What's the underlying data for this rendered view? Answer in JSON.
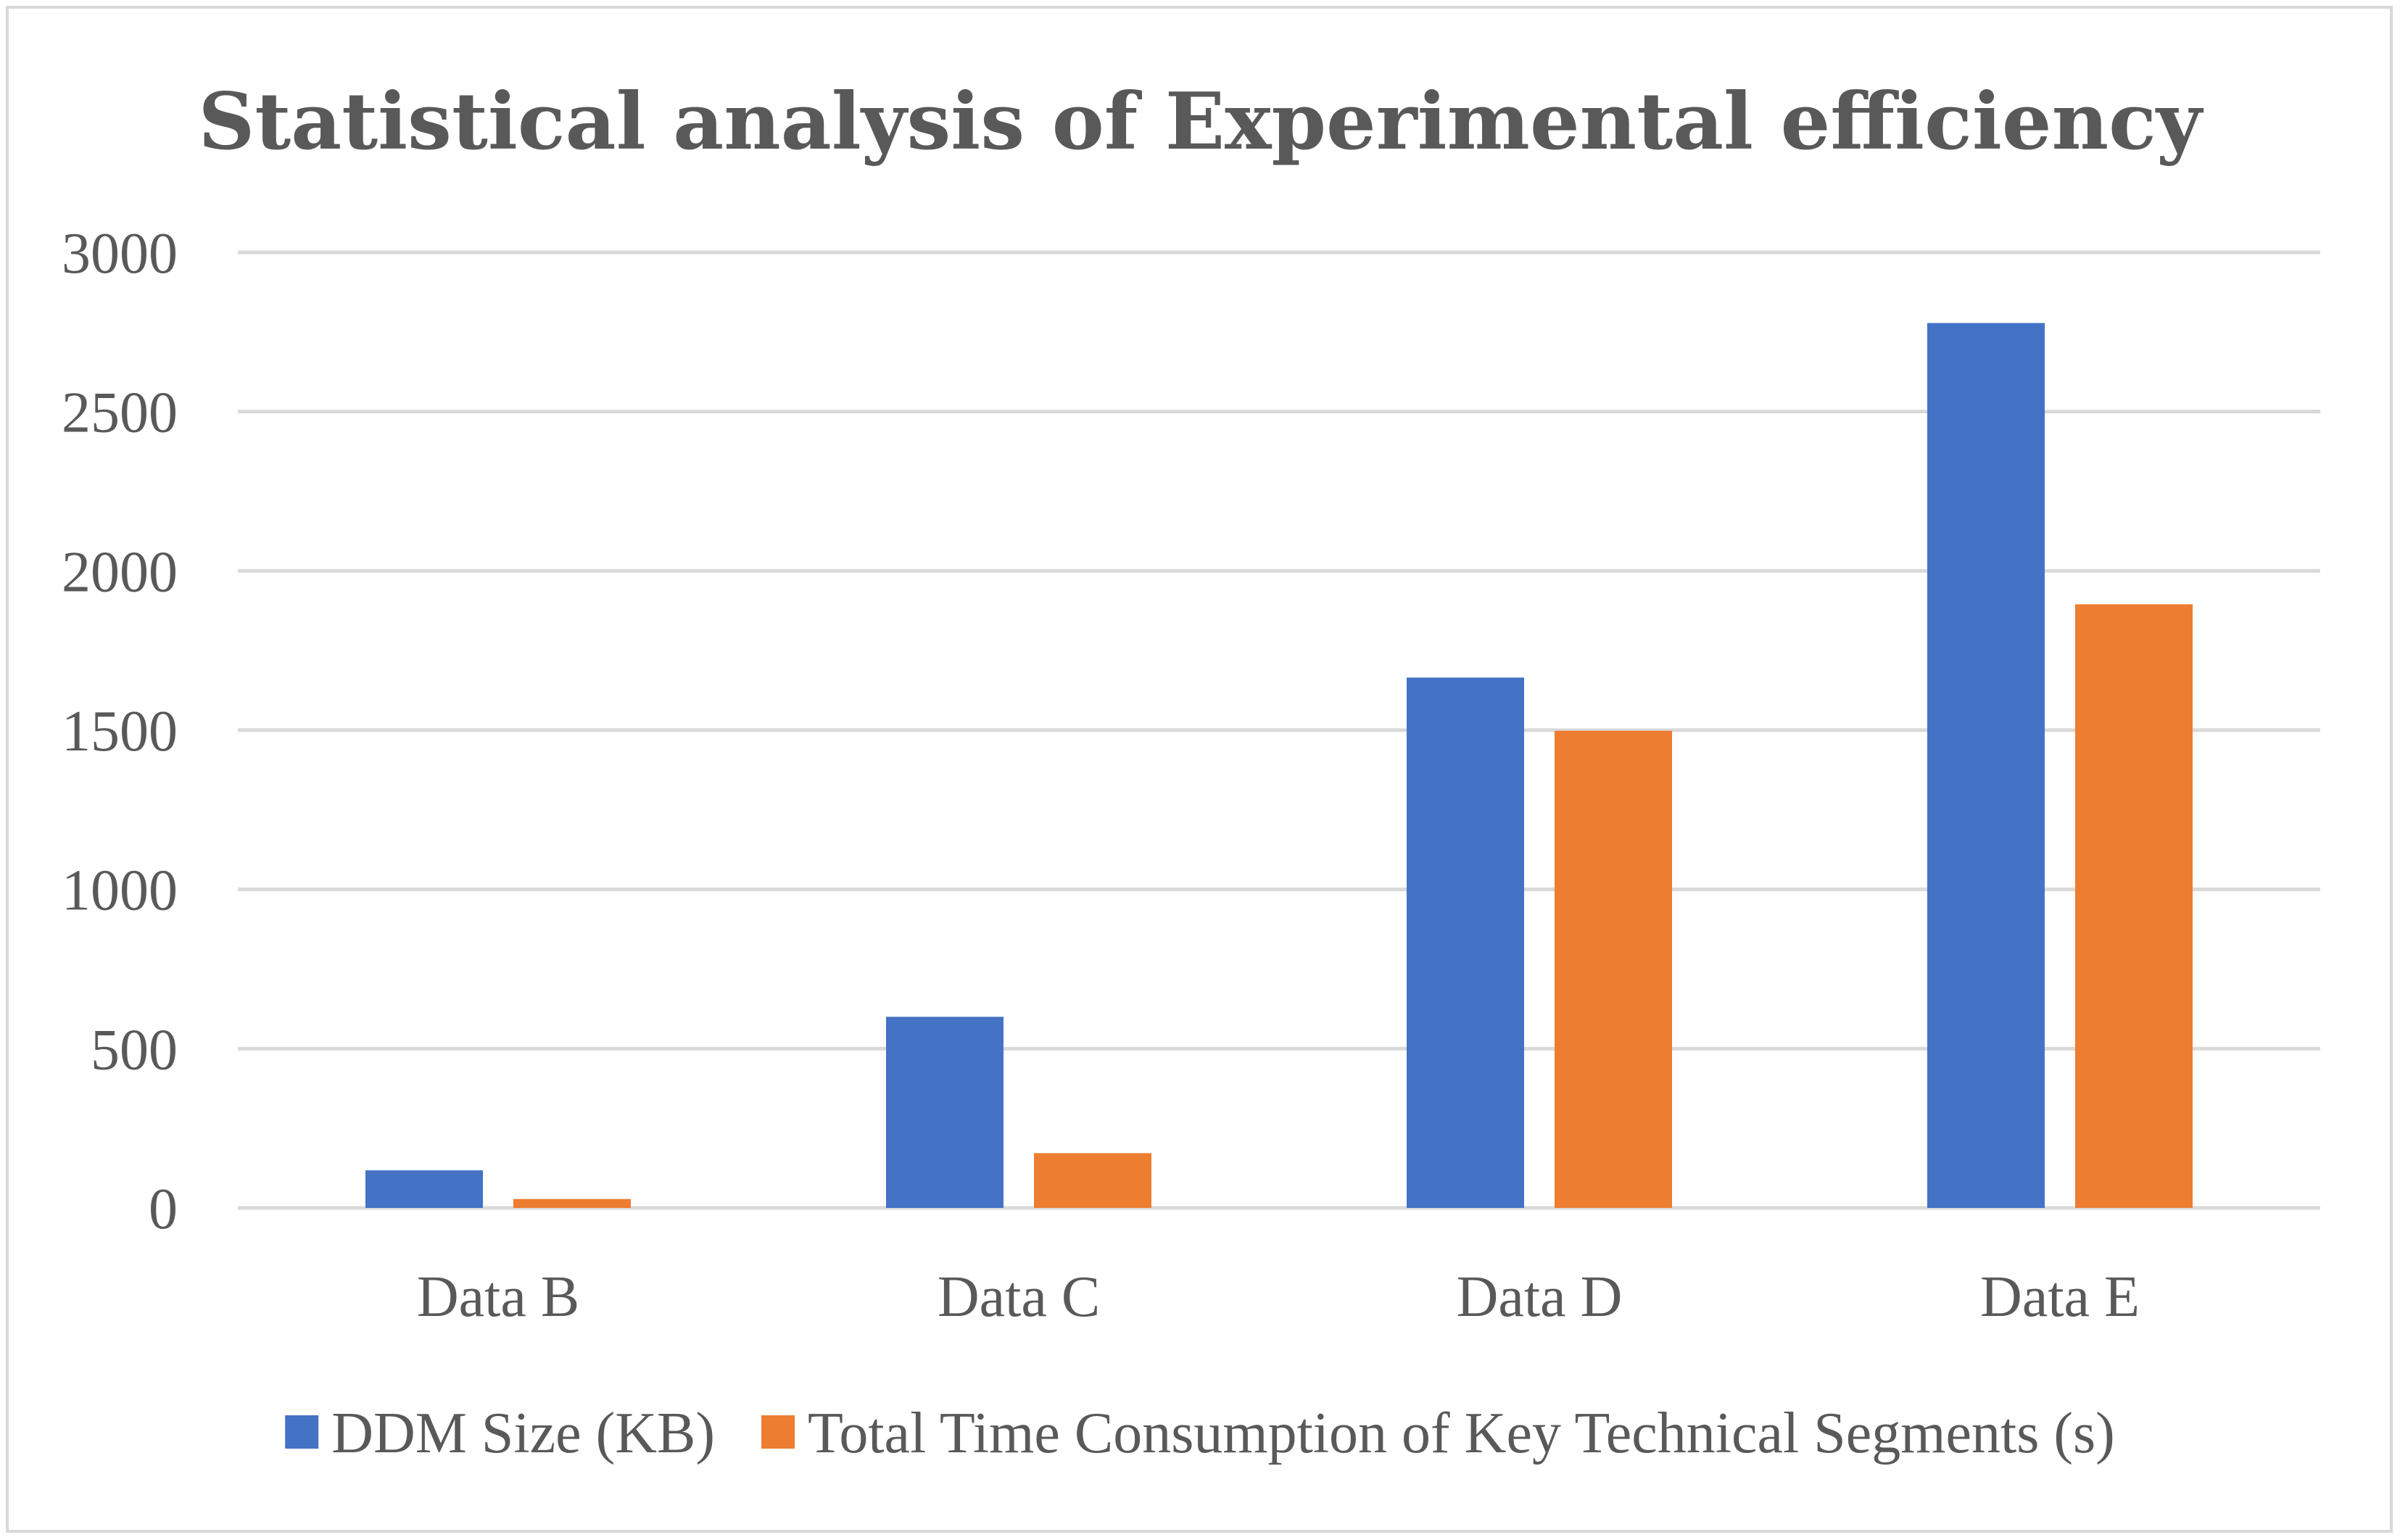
{
  "chart_data": {
    "type": "bar",
    "title": "Statistical analysis of Experimental efficiency",
    "categories": [
      "Data B",
      "Data C",
      "Data D",
      "Data E"
    ],
    "series": [
      {
        "name": "DDM Size (KB)",
        "color": "#4472c4",
        "values": [
          118,
          600,
          1665,
          2778
        ]
      },
      {
        "name": "Total Time Consumption of Key Technical Segments (s)",
        "color": "#ed7d31",
        "values": [
          28,
          172,
          1498,
          1895
        ]
      }
    ],
    "ylim": [
      0,
      3000
    ],
    "yticks": [
      0,
      500,
      1000,
      1500,
      2000,
      2500,
      3000
    ],
    "xlabel": "",
    "ylabel": "",
    "grid": true,
    "legend": "bottom"
  }
}
